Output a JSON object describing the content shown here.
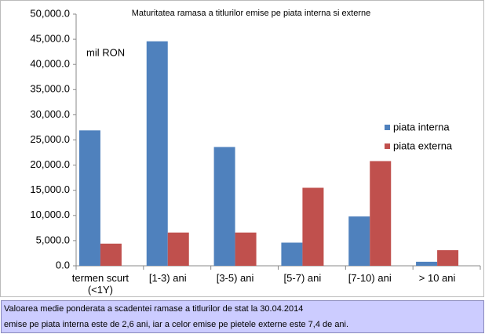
{
  "chart_data": {
    "type": "bar",
    "title": "Maturitatea ramasa a titlurilor emise pe piata interna si externe",
    "annotation": "mil RON",
    "categories": [
      "termen scurt\n(<1Y)",
      "[1-3) ani",
      "[3-5) ani",
      "[5-7) ani",
      "[7-10) ani",
      "> 10 ani"
    ],
    "series": [
      {
        "name": "piata interna",
        "color": "#4f81bd",
        "values": [
          26900,
          44600,
          23600,
          4600,
          9800,
          800
        ]
      },
      {
        "name": "piata externa",
        "color": "#c0504d",
        "values": [
          4400,
          6600,
          6600,
          15500,
          20800,
          3100
        ]
      }
    ],
    "ylim": [
      0,
      50000
    ],
    "yticks": [
      {
        "value": 0,
        "label": "0.0"
      },
      {
        "value": 5000,
        "label": "5,000.0"
      },
      {
        "value": 10000,
        "label": "10,000.0"
      },
      {
        "value": 15000,
        "label": "15,000.0"
      },
      {
        "value": 20000,
        "label": "20,000.0"
      },
      {
        "value": 25000,
        "label": "25,000.0"
      },
      {
        "value": 30000,
        "label": "30,000.0"
      },
      {
        "value": 35000,
        "label": "35,000.0"
      },
      {
        "value": 40000,
        "label": "40,000.0"
      },
      {
        "value": 45000,
        "label": "45,000.0"
      },
      {
        "value": 50000,
        "label": "50,000.0"
      }
    ],
    "legend": "right",
    "caption": [
      "Valoarea medie ponderata a scadentei ramase a titlurilor de stat la 30.04.2014",
      "emise pe piata interna este de 2,6 ani, iar a celor emise pe pietele externe este 7,4 de ani."
    ]
  }
}
